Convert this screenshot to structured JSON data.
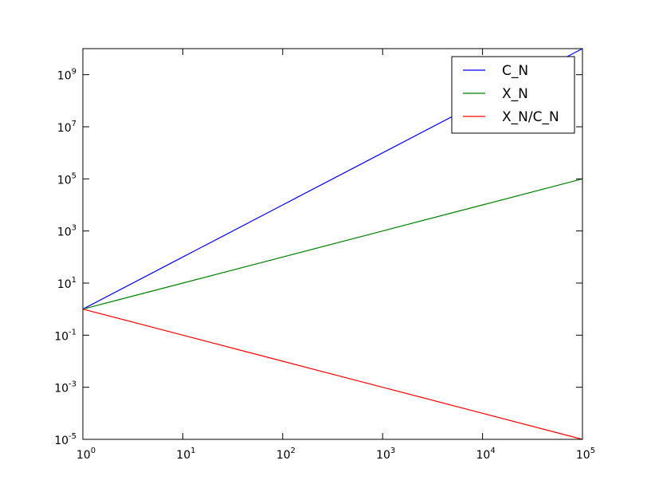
{
  "chart_data": {
    "type": "line",
    "xscale": "log",
    "yscale": "log",
    "x": [
      1,
      10,
      100,
      1000,
      10000,
      100000
    ],
    "series": [
      {
        "name": "C_N",
        "color": "#0000ff",
        "values": [
          1,
          100,
          10000,
          1000000,
          100000000,
          10000000000
        ]
      },
      {
        "name": "X_N",
        "color": "#008000",
        "values": [
          1,
          10,
          100,
          1000,
          10000,
          100000
        ]
      },
      {
        "name": "X_N/C_N",
        "color": "#ff0000",
        "values": [
          1,
          0.1,
          0.01,
          0.001,
          0.0001,
          1e-05
        ]
      }
    ],
    "xlim": [
      1,
      100000
    ],
    "ylim": [
      1e-05,
      10000000000
    ],
    "xticks": [
      {
        "value": 1,
        "label": "10",
        "exponent": "0"
      },
      {
        "value": 10,
        "label": "10",
        "exponent": "1"
      },
      {
        "value": 100,
        "label": "10",
        "exponent": "2"
      },
      {
        "value": 1000,
        "label": "10",
        "exponent": "3"
      },
      {
        "value": 10000,
        "label": "10",
        "exponent": "4"
      },
      {
        "value": 100000,
        "label": "10",
        "exponent": "5"
      }
    ],
    "yticks": [
      {
        "value": 1e-05,
        "label": "10",
        "exponent": "-5"
      },
      {
        "value": 0.001,
        "label": "10",
        "exponent": "-3"
      },
      {
        "value": 0.1,
        "label": "10",
        "exponent": "-1"
      },
      {
        "value": 10,
        "label": "10",
        "exponent": "1"
      },
      {
        "value": 1000,
        "label": "10",
        "exponent": "3"
      },
      {
        "value": 100000,
        "label": "10",
        "exponent": "5"
      },
      {
        "value": 10000000,
        "label": "10",
        "exponent": "7"
      },
      {
        "value": 1000000000,
        "label": "10",
        "exponent": "9"
      }
    ],
    "legend": "upper right"
  }
}
